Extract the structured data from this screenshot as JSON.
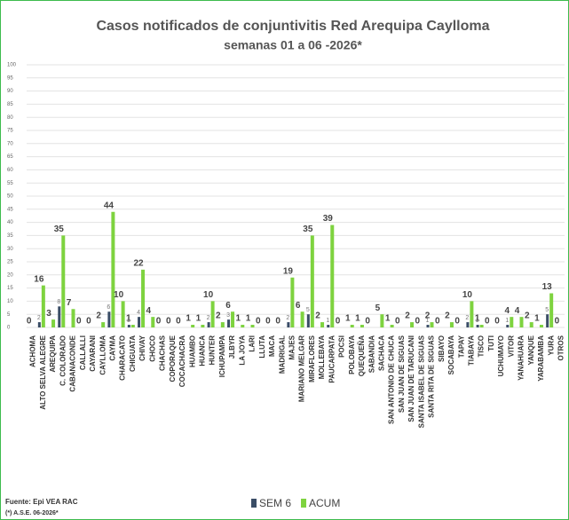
{
  "chart_data": {
    "type": "bar",
    "title": "Casos notificados de conjuntivitis Red Arequipa Caylloma",
    "subtitle": "semanas 01 a 06 -2026*",
    "categories": [
      "ACHOMA",
      "ALTO SELVA ALEGRE",
      "AREQUIPA",
      "C. COLORADO",
      "CABANACONDE",
      "CALLALLI",
      "CAYARANI",
      "CAYLLOMA",
      "CAYMA",
      "CHARACATO",
      "CHIGUATA",
      "CHIVAY",
      "CHOCO",
      "CHACHAS",
      "COPORAQUE",
      "COCACHACRA",
      "HUAMBO",
      "HUANCA",
      "HUNTER",
      "ICHUPAMPA",
      "JLBYR",
      "LA JOYA",
      "LARI",
      "LLUTA",
      "MACA",
      "MADRIGAL",
      "MAJES",
      "MARIANO MELGAR",
      "MIRAFLORES",
      "MOLLEBAYA",
      "PAUCARPATA",
      "POCSI",
      "POLOBAYA",
      "QUEQUEÑA",
      "SABANDIA",
      "SACHACA",
      "SAN ANTONIO DE CHUCA",
      "SAN JUAN DE SIGUAS",
      "SAN JUAN DE TARUCANI",
      "SANTA ISABEL DE SIGUAS",
      "SANTA RITA DE SIGUAS",
      "SIBAYO",
      "SOCABAYA",
      "TAPAY",
      "TIABAYA",
      "TISCO",
      "TUTI",
      "UCHUMAYO",
      "VITOR",
      "YANAHUARA",
      "YANQUE",
      "YARABAMBA",
      "YURA",
      "OTROS"
    ],
    "series": [
      {
        "name": "SEM 6",
        "color": "#3a4d66",
        "values": [
          0,
          2,
          0,
          8,
          0,
          0,
          0,
          0,
          6,
          0,
          1,
          4,
          0,
          0,
          0,
          0,
          0,
          0,
          2,
          0,
          3,
          0,
          0,
          0,
          0,
          0,
          2,
          0,
          5,
          0,
          1,
          0,
          0,
          0,
          0,
          0,
          0,
          0,
          0,
          0,
          1,
          0,
          0,
          0,
          2,
          1,
          0,
          0,
          1,
          0,
          0,
          0,
          5,
          0
        ]
      },
      {
        "name": "ACUM",
        "color": "#7ed33f",
        "values": [
          0,
          16,
          3,
          35,
          7,
          0,
          0,
          2,
          44,
          10,
          1,
          22,
          4,
          0,
          0,
          0,
          1,
          1,
          10,
          2,
          6,
          1,
          1,
          0,
          0,
          0,
          19,
          6,
          35,
          2,
          39,
          0,
          1,
          1,
          0,
          5,
          1,
          0,
          2,
          0,
          2,
          0,
          2,
          0,
          10,
          1,
          0,
          0,
          4,
          4,
          2,
          1,
          13,
          0
        ]
      }
    ],
    "ylim": [
      0,
      100
    ],
    "yticks": [
      0,
      5,
      10,
      15,
      20,
      25,
      30,
      35,
      40,
      45,
      50,
      55,
      60,
      65,
      70,
      75,
      80,
      85,
      90,
      95,
      100
    ],
    "grid": true,
    "legend": "bottom",
    "source": "Fuente: Epi VEA RAC",
    "note": "(*) A.S.E. 06-2026*"
  }
}
